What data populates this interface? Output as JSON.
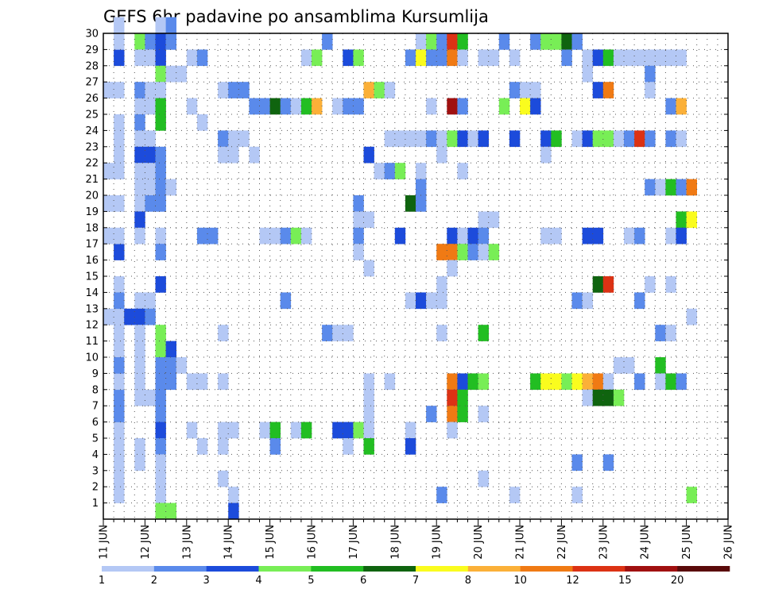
{
  "chart_data": {
    "type": "heatmap",
    "title": "GEFS 6hr padavine po ansamblima Kursumlija",
    "x_tick_labels": [
      "11 JUN",
      "12 JUN",
      "13 JUN",
      "14 JUN",
      "15 JUN",
      "16 JUN",
      "17 JUN",
      "18 JUN",
      "19 JUN",
      "20 JUN",
      "21 JUN",
      "22 JUN",
      "23 JUN",
      "24 JUN",
      "25 JUN",
      "26 JUN"
    ],
    "y_tick_labels": [
      "1",
      "2",
      "3",
      "4",
      "5",
      "6",
      "7",
      "8",
      "9",
      "10",
      "11",
      "12",
      "13",
      "14",
      "15",
      "16",
      "17",
      "18",
      "19",
      "20",
      "21",
      "22",
      "23",
      "24",
      "25",
      "26",
      "27",
      "28",
      "29",
      "30"
    ],
    "ylim": [
      0,
      30
    ],
    "xlim": [
      0,
      60
    ],
    "grid": true,
    "levels": [
      1,
      2,
      3,
      4,
      5,
      6,
      7,
      8,
      10,
      12,
      15,
      20
    ],
    "colorbar": {
      "labels": [
        "1",
        "2",
        "3",
        "4",
        "5",
        "6",
        "7",
        "8",
        "10",
        "12",
        "15",
        "20"
      ],
      "colors": [
        "#b4c8f5",
        "#5a8aeb",
        "#1c4bdb",
        "#78ee56",
        "#22be22",
        "#0f640f",
        "#fafc1e",
        "#fbb038",
        "#f07a14",
        "#dc3214",
        "#a01010",
        "#5a0a0a"
      ]
    },
    "cells": [
      [
        1,
        28,
        3
      ],
      [
        1,
        5,
        1
      ],
      [
        1,
        3,
        1
      ],
      [
        1,
        10,
        1
      ],
      [
        1,
        12,
        1
      ],
      [
        1,
        14,
        1
      ],
      [
        1,
        16,
        3
      ],
      [
        1,
        17,
        1
      ],
      [
        1,
        19,
        1
      ],
      [
        1,
        21,
        1
      ],
      [
        1,
        22,
        1
      ],
      [
        1,
        23,
        1
      ],
      [
        1,
        24,
        1
      ],
      [
        1,
        26,
        1
      ],
      [
        1,
        29,
        1
      ],
      [
        1,
        30,
        1
      ],
      [
        1,
        1,
        1
      ],
      [
        1,
        2,
        1
      ],
      [
        1,
        4,
        1
      ],
      [
        1,
        6,
        2
      ],
      [
        1,
        7,
        2
      ],
      [
        1,
        8,
        1
      ],
      [
        1,
        9,
        2
      ],
      [
        1,
        11,
        1
      ],
      [
        1,
        13,
        2
      ],
      [
        0,
        26,
        1
      ],
      [
        0,
        19,
        1
      ],
      [
        0,
        21,
        1
      ],
      [
        0,
        17,
        1
      ],
      [
        0,
        12,
        1
      ],
      [
        2,
        12,
        3
      ],
      [
        3,
        29,
        4
      ],
      [
        3,
        28,
        1
      ],
      [
        3,
        25,
        1
      ],
      [
        3,
        26,
        2
      ],
      [
        3,
        24,
        2
      ],
      [
        3,
        23,
        1
      ],
      [
        3,
        22,
        3
      ],
      [
        3,
        21,
        1
      ],
      [
        3,
        20,
        1
      ],
      [
        3,
        19,
        1
      ],
      [
        3,
        18,
        3
      ],
      [
        3,
        17,
        1
      ],
      [
        3,
        13,
        1
      ],
      [
        3,
        12,
        3
      ],
      [
        3,
        11,
        1
      ],
      [
        3,
        10,
        1
      ],
      [
        3,
        9,
        1
      ],
      [
        3,
        8,
        1
      ],
      [
        3,
        7,
        1
      ],
      [
        3,
        4,
        1
      ],
      [
        3,
        3,
        1
      ],
      [
        4,
        29,
        2
      ],
      [
        4,
        28,
        1
      ],
      [
        4,
        26,
        1
      ],
      [
        4,
        25,
        1
      ],
      [
        4,
        23,
        1
      ],
      [
        4,
        22,
        3
      ],
      [
        4,
        21,
        1
      ],
      [
        4,
        20,
        1
      ],
      [
        4,
        19,
        2
      ],
      [
        4,
        13,
        1
      ],
      [
        4,
        12,
        2
      ],
      [
        4,
        7,
        1
      ],
      [
        5,
        30,
        1
      ],
      [
        5,
        29,
        3
      ],
      [
        5,
        28,
        3
      ],
      [
        5,
        27,
        4
      ],
      [
        5,
        26,
        1
      ],
      [
        5,
        25,
        5
      ],
      [
        5,
        24,
        5
      ],
      [
        5,
        22,
        2
      ],
      [
        5,
        21,
        2
      ],
      [
        5,
        20,
        2
      ],
      [
        5,
        19,
        2
      ],
      [
        5,
        17,
        1
      ],
      [
        5,
        16,
        2
      ],
      [
        5,
        14,
        3
      ],
      [
        5,
        11,
        4
      ],
      [
        5,
        10,
        4
      ],
      [
        5,
        9,
        2
      ],
      [
        5,
        8,
        2
      ],
      [
        5,
        7,
        2
      ],
      [
        5,
        6,
        2
      ],
      [
        5,
        5,
        3
      ],
      [
        5,
        4,
        2
      ],
      [
        5,
        3,
        1
      ],
      [
        5,
        2,
        1
      ],
      [
        5,
        1,
        1
      ],
      [
        5,
        0,
        4
      ],
      [
        6,
        30,
        2
      ],
      [
        6,
        29,
        2
      ],
      [
        6,
        27,
        1
      ],
      [
        6,
        20,
        1
      ],
      [
        6,
        10,
        3
      ],
      [
        6,
        9,
        2
      ],
      [
        6,
        8,
        2
      ],
      [
        6,
        0,
        4
      ],
      [
        7,
        27,
        1
      ],
      [
        7,
        9,
        1
      ],
      [
        8,
        28,
        1
      ],
      [
        8,
        25,
        1
      ],
      [
        8,
        8,
        1
      ],
      [
        8,
        5,
        1
      ],
      [
        9,
        28,
        2
      ],
      [
        9,
        24,
        1
      ],
      [
        9,
        17,
        2
      ],
      [
        9,
        8,
        1
      ],
      [
        9,
        4,
        1
      ],
      [
        10,
        17,
        2
      ],
      [
        11,
        26,
        1
      ],
      [
        11,
        23,
        2
      ],
      [
        11,
        22,
        1
      ],
      [
        11,
        2,
        1
      ],
      [
        11,
        5,
        1
      ],
      [
        11,
        8,
        1
      ],
      [
        11,
        11,
        1
      ],
      [
        11,
        4,
        1
      ],
      [
        12,
        26,
        2
      ],
      [
        12,
        23,
        1
      ],
      [
        12,
        22,
        1
      ],
      [
        12,
        1,
        1
      ],
      [
        12,
        0,
        3
      ],
      [
        12,
        5,
        1
      ],
      [
        13,
        26,
        2
      ],
      [
        13,
        23,
        1
      ],
      [
        14,
        25,
        2
      ],
      [
        14,
        22,
        1
      ],
      [
        15,
        25,
        2
      ],
      [
        15,
        17,
        1
      ],
      [
        15,
        5,
        1
      ],
      [
        16,
        25,
        6
      ],
      [
        16,
        17,
        1
      ],
      [
        16,
        5,
        5
      ],
      [
        16,
        4,
        2
      ],
      [
        17,
        25,
        2
      ],
      [
        17,
        17,
        2
      ],
      [
        17,
        13,
        2
      ],
      [
        18,
        25,
        1
      ],
      [
        18,
        17,
        4
      ],
      [
        18,
        5,
        1
      ],
      [
        19,
        28,
        1
      ],
      [
        19,
        25,
        5
      ],
      [
        19,
        17,
        1
      ],
      [
        19,
        5,
        5
      ],
      [
        20,
        28,
        4
      ],
      [
        20,
        25,
        8
      ],
      [
        21,
        29,
        2
      ],
      [
        21,
        11,
        2
      ],
      [
        22,
        25,
        1
      ],
      [
        22,
        11,
        1
      ],
      [
        22,
        5,
        3
      ],
      [
        23,
        28,
        3
      ],
      [
        23,
        25,
        2
      ],
      [
        23,
        11,
        1
      ],
      [
        23,
        5,
        3
      ],
      [
        23,
        4,
        1
      ],
      [
        24,
        28,
        4
      ],
      [
        24,
        25,
        2
      ],
      [
        24,
        19,
        2
      ],
      [
        24,
        18,
        1
      ],
      [
        24,
        17,
        2
      ],
      [
        24,
        16,
        1
      ],
      [
        24,
        5,
        4
      ],
      [
        25,
        26,
        8
      ],
      [
        25,
        22,
        3
      ],
      [
        25,
        18,
        1
      ],
      [
        25,
        15,
        1
      ],
      [
        25,
        8,
        1
      ],
      [
        25,
        7,
        1
      ],
      [
        25,
        6,
        1
      ],
      [
        25,
        5,
        1
      ],
      [
        25,
        4,
        5
      ],
      [
        26,
        26,
        4
      ],
      [
        26,
        21,
        1
      ],
      [
        27,
        26,
        1
      ],
      [
        27,
        23,
        1
      ],
      [
        27,
        21,
        2
      ],
      [
        27,
        8,
        1
      ],
      [
        28,
        21,
        4
      ],
      [
        28,
        23,
        1
      ],
      [
        28,
        17,
        3
      ],
      [
        29,
        28,
        2
      ],
      [
        29,
        23,
        1
      ],
      [
        29,
        19,
        6
      ],
      [
        29,
        13,
        1
      ],
      [
        29,
        5,
        1
      ],
      [
        29,
        4,
        3
      ],
      [
        30,
        29,
        1
      ],
      [
        30,
        28,
        7
      ],
      [
        30,
        23,
        1
      ],
      [
        30,
        21,
        1
      ],
      [
        30,
        20,
        2
      ],
      [
        30,
        19,
        2
      ],
      [
        30,
        13,
        3
      ],
      [
        31,
        29,
        4
      ],
      [
        31,
        28,
        2
      ],
      [
        31,
        25,
        1
      ],
      [
        31,
        23,
        2
      ],
      [
        31,
        13,
        1
      ],
      [
        31,
        6,
        2
      ],
      [
        32,
        29,
        2
      ],
      [
        32,
        28,
        2
      ],
      [
        32,
        23,
        1
      ],
      [
        32,
        22,
        1
      ],
      [
        32,
        16,
        9
      ],
      [
        32,
        14,
        1
      ],
      [
        32,
        13,
        1
      ],
      [
        32,
        11,
        1
      ],
      [
        32,
        1,
        2
      ],
      [
        33,
        29,
        10
      ],
      [
        33,
        28,
        9
      ],
      [
        33,
        25,
        11
      ],
      [
        33,
        23,
        4
      ],
      [
        33,
        17,
        3
      ],
      [
        33,
        16,
        9
      ],
      [
        33,
        15,
        1
      ],
      [
        33,
        8,
        9
      ],
      [
        33,
        7,
        10
      ],
      [
        33,
        6,
        9
      ],
      [
        33,
        5,
        1
      ],
      [
        34,
        29,
        5
      ],
      [
        34,
        28,
        1
      ],
      [
        34,
        25,
        2
      ],
      [
        34,
        23,
        3
      ],
      [
        34,
        21,
        1
      ],
      [
        34,
        17,
        1
      ],
      [
        34,
        16,
        4
      ],
      [
        34,
        8,
        3
      ],
      [
        34,
        7,
        5
      ],
      [
        34,
        6,
        5
      ],
      [
        35,
        23,
        1
      ],
      [
        35,
        17,
        3
      ],
      [
        35,
        16,
        2
      ],
      [
        35,
        8,
        5
      ],
      [
        36,
        28,
        1
      ],
      [
        36,
        23,
        3
      ],
      [
        36,
        18,
        1
      ],
      [
        36,
        17,
        2
      ],
      [
        36,
        16,
        1
      ],
      [
        36,
        11,
        5
      ],
      [
        36,
        8,
        4
      ],
      [
        36,
        6,
        1
      ],
      [
        36,
        2,
        1
      ],
      [
        37,
        28,
        1
      ],
      [
        37,
        18,
        1
      ],
      [
        37,
        16,
        4
      ],
      [
        38,
        29,
        2
      ],
      [
        38,
        25,
        4
      ],
      [
        39,
        28,
        1
      ],
      [
        39,
        26,
        2
      ],
      [
        39,
        23,
        3
      ],
      [
        39,
        1,
        1
      ],
      [
        40,
        26,
        1
      ],
      [
        40,
        25,
        7
      ],
      [
        41,
        29,
        2
      ],
      [
        41,
        26,
        1
      ],
      [
        41,
        25,
        3
      ],
      [
        41,
        8,
        5
      ],
      [
        42,
        29,
        4
      ],
      [
        42,
        23,
        3
      ],
      [
        42,
        22,
        1
      ],
      [
        42,
        17,
        1
      ],
      [
        42,
        8,
        7
      ],
      [
        43,
        29,
        4
      ],
      [
        43,
        23,
        5
      ],
      [
        43,
        17,
        1
      ],
      [
        43,
        8,
        7
      ],
      [
        44,
        29,
        6
      ],
      [
        44,
        28,
        2
      ],
      [
        44,
        8,
        4
      ],
      [
        45,
        29,
        2
      ],
      [
        45,
        23,
        1
      ],
      [
        45,
        13,
        2
      ],
      [
        45,
        8,
        7
      ],
      [
        45,
        3,
        2
      ],
      [
        45,
        1,
        1
      ],
      [
        46,
        28,
        1
      ],
      [
        46,
        27,
        1
      ],
      [
        46,
        23,
        3
      ],
      [
        46,
        17,
        3
      ],
      [
        46,
        13,
        1
      ],
      [
        46,
        8,
        8
      ],
      [
        46,
        7,
        1
      ],
      [
        47,
        28,
        3
      ],
      [
        47,
        26,
        3
      ],
      [
        47,
        23,
        4
      ],
      [
        47,
        17,
        3
      ],
      [
        47,
        14,
        6
      ],
      [
        47,
        8,
        9
      ],
      [
        47,
        7,
        6
      ],
      [
        48,
        28,
        5
      ],
      [
        48,
        26,
        9
      ],
      [
        48,
        23,
        4
      ],
      [
        48,
        14,
        10
      ],
      [
        48,
        8,
        1
      ],
      [
        48,
        7,
        6
      ],
      [
        48,
        3,
        2
      ],
      [
        49,
        28,
        1
      ],
      [
        49,
        23,
        1
      ],
      [
        49,
        9,
        1
      ],
      [
        49,
        7,
        4
      ],
      [
        50,
        28,
        1
      ],
      [
        50,
        23,
        2
      ],
      [
        50,
        17,
        1
      ],
      [
        50,
        9,
        1
      ],
      [
        51,
        28,
        1
      ],
      [
        51,
        23,
        10
      ],
      [
        51,
        17,
        2
      ],
      [
        51,
        13,
        2
      ],
      [
        51,
        8,
        2
      ],
      [
        52,
        28,
        1
      ],
      [
        52,
        27,
        2
      ],
      [
        52,
        26,
        1
      ],
      [
        52,
        23,
        2
      ],
      [
        52,
        20,
        2
      ],
      [
        52,
        14,
        1
      ],
      [
        53,
        28,
        1
      ],
      [
        53,
        20,
        1
      ],
      [
        53,
        11,
        2
      ],
      [
        53,
        9,
        5
      ],
      [
        53,
        8,
        1
      ],
      [
        54,
        28,
        1
      ],
      [
        54,
        25,
        2
      ],
      [
        54,
        23,
        2
      ],
      [
        54,
        20,
        5
      ],
      [
        54,
        17,
        1
      ],
      [
        54,
        14,
        1
      ],
      [
        54,
        11,
        1
      ],
      [
        54,
        8,
        5
      ],
      [
        55,
        28,
        1
      ],
      [
        55,
        25,
        8
      ],
      [
        55,
        23,
        1
      ],
      [
        55,
        20,
        2
      ],
      [
        55,
        18,
        5
      ],
      [
        55,
        17,
        3
      ],
      [
        55,
        8,
        2
      ],
      [
        56,
        20,
        9
      ],
      [
        56,
        18,
        7
      ],
      [
        56,
        12,
        1
      ],
      [
        56,
        1,
        4
      ]
    ]
  }
}
